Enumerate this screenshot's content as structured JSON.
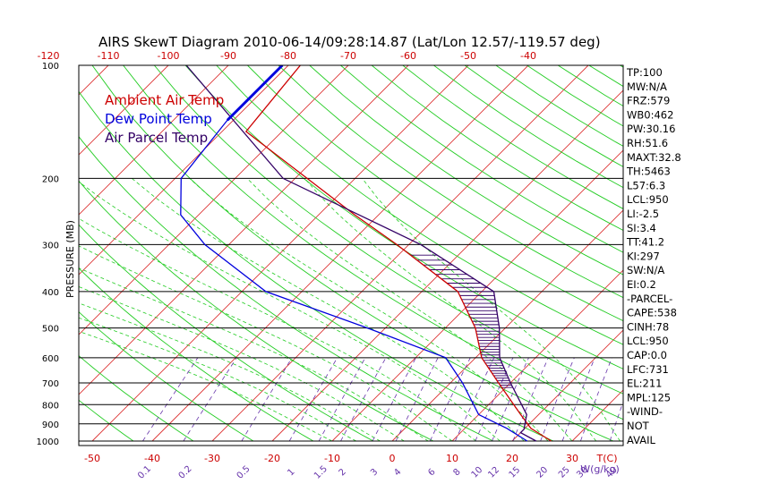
{
  "chart_data": {
    "type": "line",
    "title": "AIRS SkewT Diagram 2010-06-14/09:28:14.87 (Lat/Lon 12.57/-119.57 deg)",
    "ylabel": "PRESSURE (MB)",
    "xlabel_unit": "T(C)",
    "mix_unit": "W(g/kg)",
    "top_temp_ticks": [
      "-120",
      "-110",
      "-100",
      "-90",
      "-80",
      "-70",
      "-60",
      "-50",
      "-40"
    ],
    "bottom_temp_ticks": [
      "-50",
      "-40",
      "-30",
      "-20",
      "-10",
      "0",
      "10",
      "20",
      "30"
    ],
    "mixing_ratio_ticks": [
      "0.1",
      "0.2",
      "0.5",
      "1",
      "1.5",
      "2",
      "3",
      "4",
      "6",
      "8",
      "10",
      "12",
      "15",
      "20",
      "25",
      "30",
      "40"
    ],
    "pressure_ticks": [
      "100",
      "200",
      "300",
      "400",
      "500",
      "600",
      "700",
      "800",
      "900",
      "1000"
    ],
    "ylim": [
      1000,
      100
    ],
    "xlim_bottom": [
      -52,
      36
    ],
    "legend": [
      {
        "name": "Ambient Air Temp",
        "color": "#cc0000"
      },
      {
        "name": "Dew Point Temp",
        "color": "#0000dd"
      },
      {
        "name": "Air Parcel Temp",
        "color": "#330066"
      }
    ],
    "series": [
      {
        "name": "Ambient Air Temp",
        "color": "#cc0000",
        "points": [
          [
            100,
            -78
          ],
          [
            150,
            -76
          ],
          [
            200,
            -58
          ],
          [
            250,
            -44
          ],
          [
            300,
            -32
          ],
          [
            400,
            -14
          ],
          [
            500,
            -5
          ],
          [
            600,
            1
          ],
          [
            700,
            8
          ],
          [
            850,
            17
          ],
          [
            925,
            21
          ],
          [
            1000,
            26.5
          ]
        ]
      },
      {
        "name": "Dew Point Temp",
        "color": "#0000dd",
        "points": [
          [
            100,
            -81
          ],
          [
            140,
            -81
          ],
          [
            200,
            -79
          ],
          [
            250,
            -73
          ],
          [
            300,
            -64
          ],
          [
            400,
            -46
          ],
          [
            500,
            -23
          ],
          [
            600,
            -5
          ],
          [
            700,
            2
          ],
          [
            850,
            10
          ],
          [
            925,
            17
          ],
          [
            1000,
            22.5
          ]
        ]
      },
      {
        "name": "Air Parcel Temp",
        "color": "#330066",
        "points": [
          [
            100,
            -97
          ],
          [
            200,
            -62
          ],
          [
            300,
            -28
          ],
          [
            400,
            -8
          ],
          [
            500,
            -1
          ],
          [
            600,
            4
          ],
          [
            700,
            10
          ],
          [
            850,
            18
          ],
          [
            930,
            20
          ],
          [
            950,
            20
          ],
          [
            1000,
            24
          ]
        ]
      }
    ],
    "indices": [
      "TP:100",
      "MW:N/A",
      "FRZ:579",
      "WB0:462",
      "PW:30.16",
      "RH:51.6",
      "MAXT:32.8",
      "TH:5463",
      "L57:6.3",
      "LCL:950",
      "LI:-2.5",
      "SI:3.4",
      "TT:41.2",
      "KI:297",
      "SW:N/A",
      "EI:0.2",
      "-PARCEL-",
      "CAPE:538",
      "CINH:78",
      "LCL:950",
      "CAP:0.0",
      "LFC:731",
      "EL:211",
      "MPL:125",
      "-WIND-",
      "NOT",
      "AVAIL"
    ]
  }
}
